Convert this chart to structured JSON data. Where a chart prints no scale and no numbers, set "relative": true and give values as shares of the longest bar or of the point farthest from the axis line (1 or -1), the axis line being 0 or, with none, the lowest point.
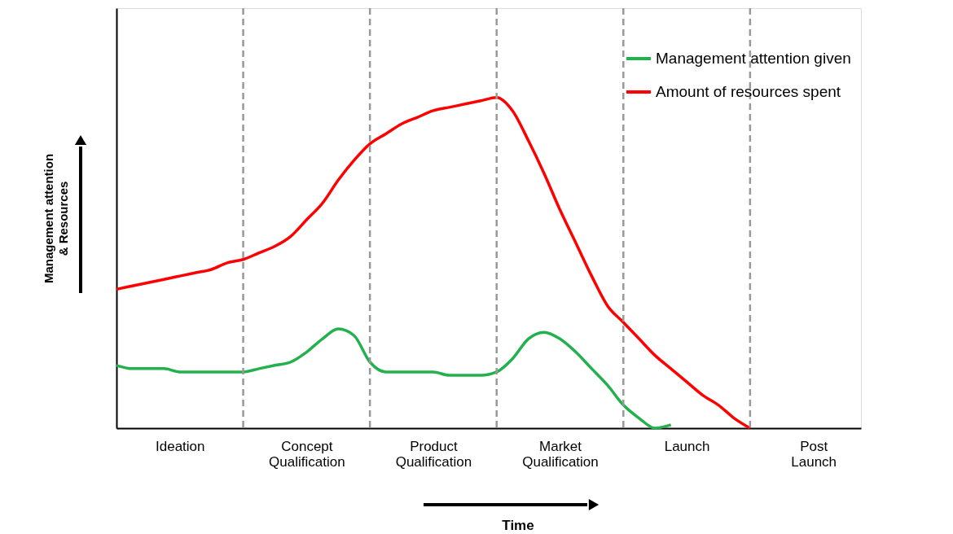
{
  "chart_data": {
    "type": "line",
    "relative": true,
    "xlabel": "Time",
    "ylabel": "Management attention & Resources",
    "categories": [
      null,
      null,
      null,
      null,
      "Ideation",
      null,
      null,
      null,
      null,
      null,
      null,
      null,
      "Concept Qualification",
      null,
      null,
      null,
      null,
      null,
      null,
      null,
      "Product Qualification",
      null,
      null,
      null,
      null,
      null,
      null,
      null,
      "Market Qualification",
      null,
      null,
      null,
      null,
      null,
      null,
      null,
      "Launch",
      null,
      null,
      null,
      null,
      null,
      null,
      null,
      "Post Launch",
      null,
      null,
      null
    ],
    "series": [
      {
        "name": "Management attention given",
        "color": "#22b14c",
        "values": [
          0.19,
          0.18,
          0.18,
          0.18,
          0.17,
          0.17,
          0.17,
          0.17,
          0.17,
          0.18,
          0.19,
          0.2,
          0.23,
          0.27,
          0.3,
          0.28,
          0.2,
          0.17,
          0.17,
          0.17,
          0.17,
          0.16,
          0.16,
          0.16,
          0.17,
          0.21,
          0.27,
          0.29,
          0.27,
          0.23,
          0.18,
          0.13,
          0.07,
          0.03,
          0,
          0.01,
          null,
          null,
          null,
          null,
          null,
          null,
          null,
          null,
          null,
          null,
          null,
          null
        ]
      },
      {
        "name": "Amount of resources spent",
        "color": "#ff0000",
        "values": [
          0.42,
          0.43,
          0.44,
          0.45,
          0.46,
          0.47,
          0.48,
          0.5,
          0.51,
          0.53,
          0.55,
          0.58,
          0.63,
          0.68,
          0.75,
          0.81,
          0.86,
          0.89,
          0.92,
          0.94,
          0.96,
          0.97,
          0.98,
          0.99,
          1,
          0.96,
          0.87,
          0.77,
          0.66,
          0.56,
          0.46,
          0.37,
          0.32,
          0.27,
          0.22,
          0.18,
          0.14,
          0.1,
          0.07,
          0.03,
          0,
          null,
          null,
          null,
          null,
          null,
          null,
          null
        ]
      }
    ],
    "legend": "top right",
    "grid": "x",
    "marker": "none",
    "line_style": "solid"
  }
}
